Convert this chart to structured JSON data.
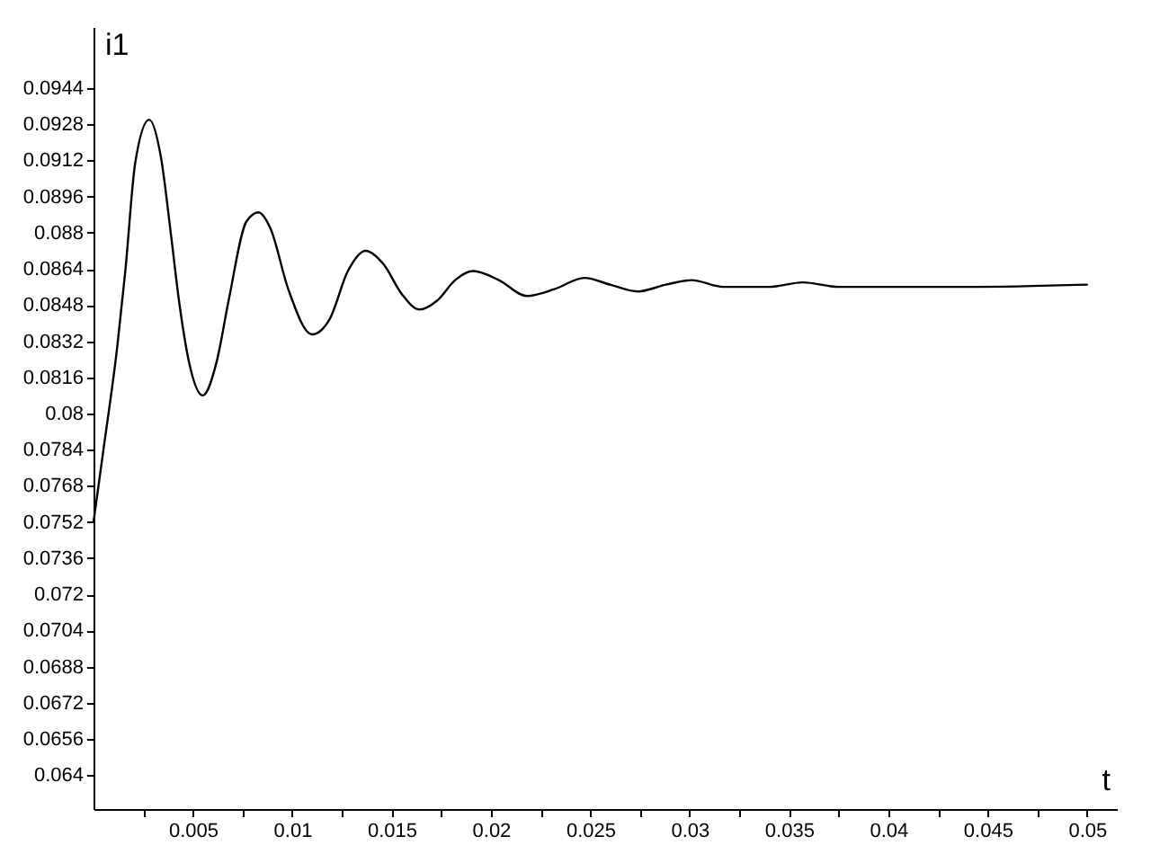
{
  "chart_data": {
    "type": "line",
    "xlabel": "t",
    "ylabel": "i1",
    "x": [
      0,
      0.0005,
      0.0012,
      0.0016,
      0.0021,
      0.0028,
      0.0034,
      0.0039,
      0.0043,
      0.0048,
      0.0055,
      0.0062,
      0.0068,
      0.0077,
      0.0083,
      0.0089,
      0.0098,
      0.011,
      0.0119,
      0.0128,
      0.0137,
      0.0146,
      0.0155,
      0.0164,
      0.0173,
      0.0182,
      0.0191,
      0.0204,
      0.0218,
      0.0232,
      0.0247,
      0.026,
      0.0274,
      0.0288,
      0.0301,
      0.0317,
      0.034,
      0.0357,
      0.0375,
      0.0393,
      0.044,
      0.05
    ],
    "series": [
      {
        "color": "#000000",
        "values": [
          0.0752,
          0.0784,
          0.083,
          0.0863,
          0.0911,
          0.093,
          0.0913,
          0.0879,
          0.085,
          0.0823,
          0.0808,
          0.0823,
          0.085,
          0.0885,
          0.0889,
          0.0882,
          0.0855,
          0.0835,
          0.0842,
          0.0863,
          0.0872,
          0.0866,
          0.0853,
          0.0846,
          0.085,
          0.0859,
          0.0863,
          0.0859,
          0.0852,
          0.0855,
          0.086,
          0.0857,
          0.0854,
          0.0857,
          0.0859,
          0.0856,
          0.0856,
          0.0858,
          0.0856,
          0.0856,
          0.0856,
          0.0857
        ]
      }
    ],
    "xlim": [
      0,
      0.0515
    ],
    "ylim": [
      0.0625,
      0.0971
    ],
    "xticks": [
      {
        "value": 0.0025,
        "label": null
      },
      0.005,
      {
        "value": 0.0075,
        "label": null
      },
      0.01,
      {
        "value": 0.0125,
        "label": null
      },
      0.015,
      {
        "value": 0.0175,
        "label": null
      },
      0.02,
      {
        "value": 0.0225,
        "label": null
      },
      0.025,
      {
        "value": 0.0275,
        "label": null
      },
      0.03,
      {
        "value": 0.0325,
        "label": null
      },
      0.035,
      {
        "value": 0.0375,
        "label": null
      },
      0.04,
      {
        "value": 0.0425,
        "label": null
      },
      0.045,
      {
        "value": 0.0475,
        "label": null
      },
      0.05
    ],
    "yticks": [
      0.064,
      0.0656,
      0.0672,
      0.0688,
      0.0704,
      0.072,
      0.0736,
      0.0752,
      0.0768,
      0.0784,
      0.08,
      0.0816,
      0.0832,
      0.0848,
      0.0864,
      0.088,
      0.0896,
      0.0912,
      0.0928,
      0.0944
    ],
    "grid": false,
    "marker": "none",
    "line_style": "solid"
  }
}
